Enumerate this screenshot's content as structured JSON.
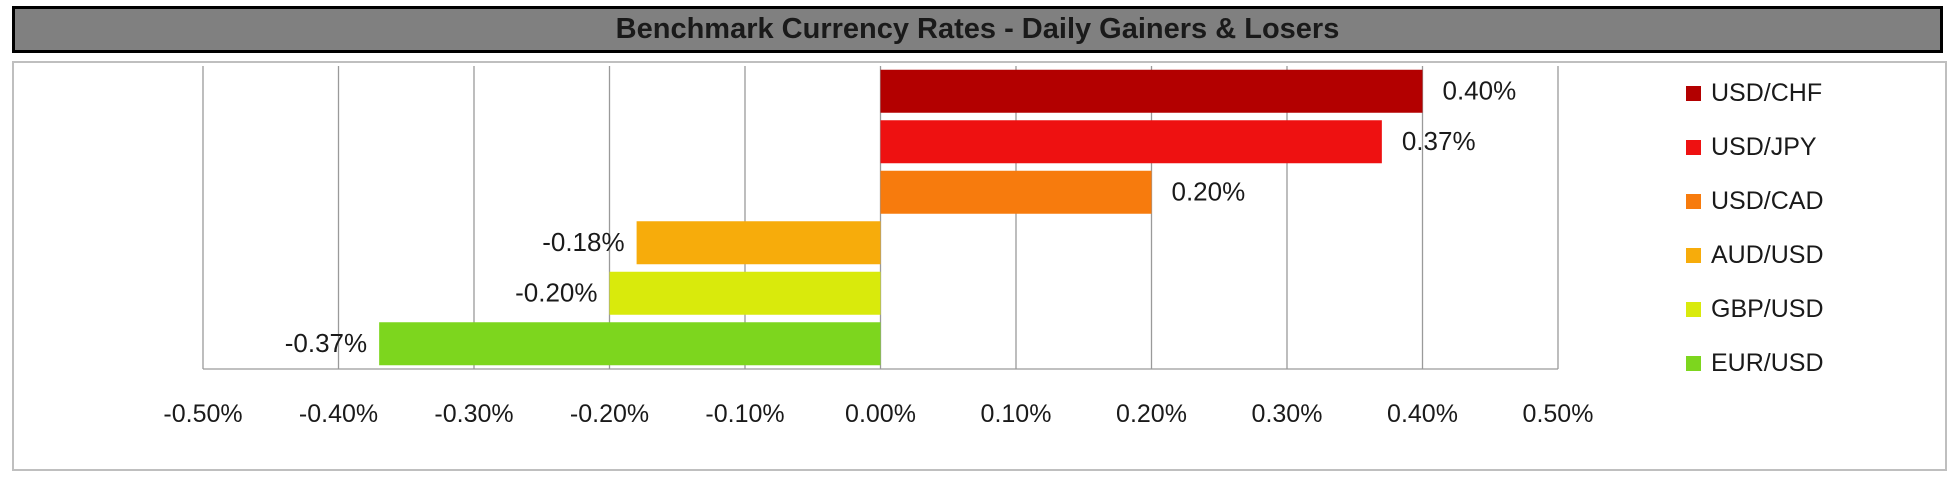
{
  "chart_data": {
    "type": "bar",
    "orientation": "horizontal",
    "title": "Benchmark Currency Rates - Daily Gainers & Losers",
    "categories": [
      "USD/CHF",
      "USD/JPY",
      "USD/CAD",
      "AUD/USD",
      "GBP/USD",
      "EUR/USD"
    ],
    "values": [
      0.4,
      0.37,
      0.2,
      -0.18,
      -0.2,
      -0.37
    ],
    "value_labels": [
      "0.40%",
      "0.37%",
      "0.20%",
      "-0.18%",
      "-0.20%",
      "-0.37%"
    ],
    "colors": [
      "#b30000",
      "#ee1111",
      "#f77b0d",
      "#f7ac0b",
      "#d9ea0c",
      "#7dd61e"
    ],
    "xlim": [
      -0.5,
      0.5
    ],
    "xticks": [
      -0.5,
      -0.4,
      -0.3,
      -0.2,
      -0.1,
      0.0,
      0.1,
      0.2,
      0.3,
      0.4,
      0.5
    ],
    "xtick_labels": [
      "-0.50%",
      "-0.40%",
      "-0.30%",
      "-0.20%",
      "-0.10%",
      "0.00%",
      "0.10%",
      "0.20%",
      "0.30%",
      "0.40%",
      "0.50%"
    ],
    "grid": "vertical",
    "legend_position": "right"
  },
  "legend": {
    "items": [
      {
        "label": "USD/CHF",
        "color": "#b30000"
      },
      {
        "label": "USD/JPY",
        "color": "#ee1111"
      },
      {
        "label": "USD/CAD",
        "color": "#f77b0d"
      },
      {
        "label": "AUD/USD",
        "color": "#f7ac0b"
      },
      {
        "label": "GBP/USD",
        "color": "#d9ea0c"
      },
      {
        "label": "EUR/USD",
        "color": "#7dd61e"
      }
    ]
  }
}
